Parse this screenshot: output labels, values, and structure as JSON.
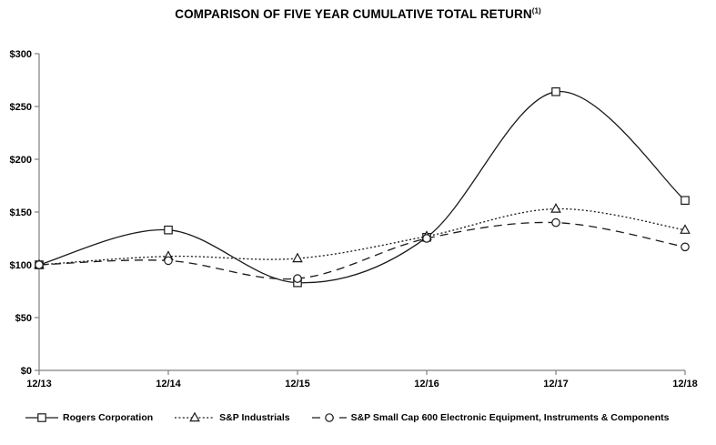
{
  "title": {
    "text": "COMPARISON OF FIVE YEAR CUMULATIVE TOTAL RETURN",
    "superscript": "(1)"
  },
  "chart_data": {
    "type": "line",
    "categories": [
      "12/13",
      "12/14",
      "12/15",
      "12/16",
      "12/17",
      "12/18"
    ],
    "series": [
      {
        "name": "Rogers Corporation",
        "marker": "square",
        "line": "solid",
        "values": [
          100,
          133,
          83,
          126,
          264,
          161
        ]
      },
      {
        "name": "S&P Industrials",
        "marker": "triangle",
        "line": "dotted",
        "values": [
          100,
          108,
          106,
          127,
          153,
          133
        ]
      },
      {
        "name": "S&P Small Cap 600 Electronic Equipment, Instruments & Components",
        "marker": "circle",
        "line": "dashed",
        "values": [
          100,
          104,
          87,
          125,
          140,
          117
        ]
      }
    ],
    "ylim": [
      0,
      300
    ],
    "yticks": [
      0,
      50,
      100,
      150,
      200,
      250,
      300
    ],
    "ytick_labels": [
      "$0",
      "$50",
      "$100",
      "$150",
      "$200",
      "$250",
      "$300"
    ],
    "xlabel": "",
    "ylabel": "",
    "grid": false,
    "legend_position": "bottom",
    "colors": {
      "series_line": "#1a1a1a",
      "axis": "#808080",
      "text": "#000000",
      "background": "#ffffff",
      "marker_fill": "#ffffff"
    }
  }
}
